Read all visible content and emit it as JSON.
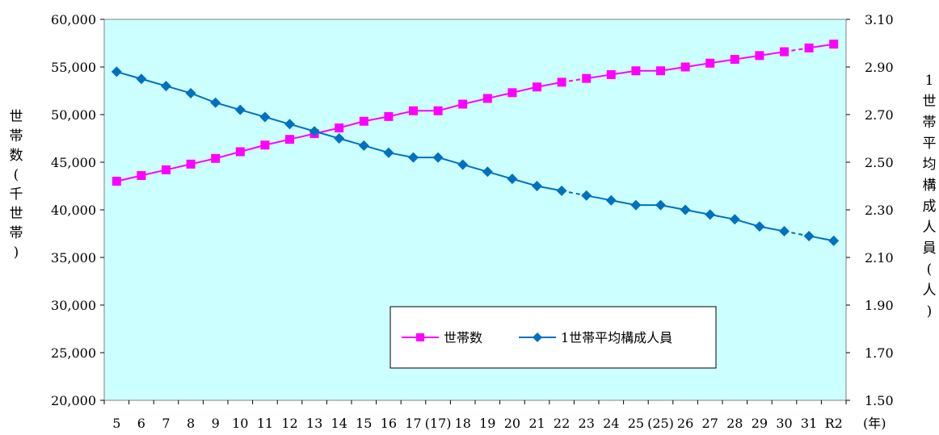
{
  "chart_data": {
    "type": "line",
    "categories": [
      "5",
      "6",
      "7",
      "8",
      "9",
      "10",
      "11",
      "12",
      "13",
      "14",
      "15",
      "16",
      "17",
      "(17)",
      "18",
      "19",
      "20",
      "21",
      "22",
      "23",
      "24",
      "25",
      "(25)",
      "26",
      "27",
      "28",
      "29",
      "30",
      "31",
      "R2"
    ],
    "x_unit_label": "(年)",
    "series": [
      {
        "name": "世帯数",
        "axis": "left",
        "color": "#ff00ff",
        "marker": "square",
        "values": [
          43000,
          43600,
          44200,
          44800,
          45400,
          46100,
          46800,
          47400,
          48000,
          48600,
          49300,
          49800,
          50400,
          50400,
          51100,
          51700,
          52300,
          52900,
          53400,
          53800,
          54200,
          54600,
          54600,
          55000,
          55400,
          55800,
          56200,
          56600,
          57000,
          57400
        ]
      },
      {
        "name": "1世帯平均構成人員",
        "axis": "right",
        "color": "#0070c0",
        "marker": "diamond",
        "values": [
          2.88,
          2.85,
          2.82,
          2.79,
          2.75,
          2.72,
          2.69,
          2.66,
          2.63,
          2.6,
          2.57,
          2.54,
          2.52,
          2.52,
          2.49,
          2.46,
          2.43,
          2.4,
          2.38,
          2.36,
          2.34,
          2.32,
          2.32,
          2.3,
          2.28,
          2.26,
          2.23,
          2.21,
          2.19,
          2.17
        ]
      }
    ],
    "dashed_segments_after_index": [
      18,
      27
    ],
    "ylabel_left": "世帯数(千世帯)",
    "ylabel_right": "1世帯平均構成人員(人)",
    "ylim_left": [
      20000,
      60000
    ],
    "yticks_left": [
      "20,000",
      "25,000",
      "30,000",
      "35,000",
      "40,000",
      "45,000",
      "50,000",
      "55,000",
      "60,000"
    ],
    "ylim_right": [
      1.5,
      3.1
    ],
    "yticks_right": [
      "1.50",
      "1.70",
      "1.90",
      "2.10",
      "2.30",
      "2.50",
      "2.70",
      "2.90",
      "3.10"
    ],
    "plot_background": "#ccffff",
    "grid": false,
    "legend_position": "bottom-center"
  }
}
